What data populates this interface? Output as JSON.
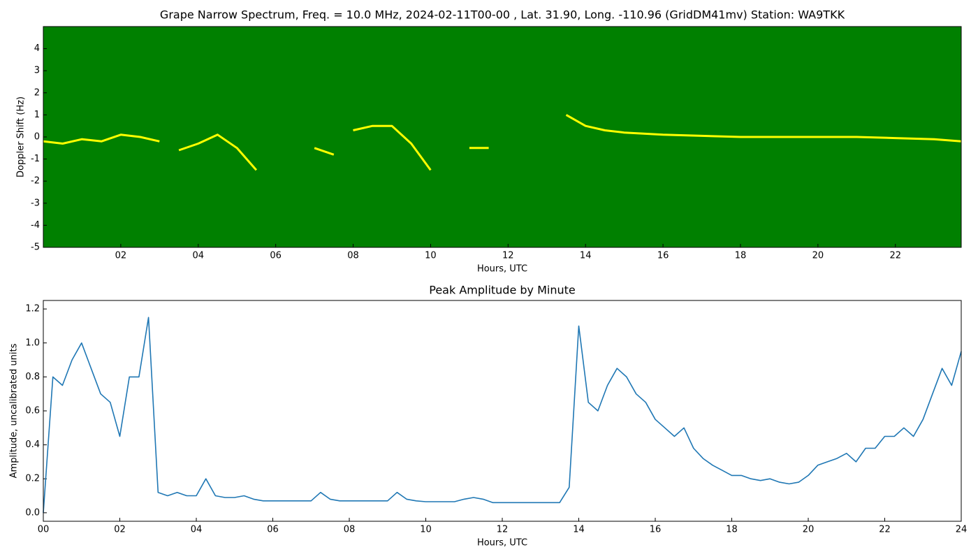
{
  "chart_data": [
    {
      "type": "line",
      "title": "Grape Narrow Spectrum, Freq. = 10.0 MHz, 2024-02-11T00-00 , Lat.  31.90, Long. -110.96 (GridDM41mv) Station: WA9TKK",
      "xlabel": "Hours, UTC",
      "ylabel": "Doppler Shift (Hz)",
      "background": "#008000",
      "xlim": [
        0,
        23.7
      ],
      "ylim": [
        -5,
        5
      ],
      "xticks": [
        {
          "value": 2,
          "label": "02"
        },
        {
          "value": 4,
          "label": "04"
        },
        {
          "value": 6,
          "label": "06"
        },
        {
          "value": 8,
          "label": "08"
        },
        10,
        12,
        14,
        16,
        18,
        20,
        22
      ],
      "yticks": [
        -5,
        -4,
        -3,
        -2,
        -1,
        0,
        1,
        2,
        3,
        4
      ],
      "x": [
        0,
        0.5,
        1,
        1.5,
        2,
        2.5,
        3,
        3.25,
        3.5,
        4,
        4.5,
        5,
        5.5,
        6,
        7,
        7.5,
        7.75,
        8,
        8.5,
        9,
        9.5,
        10,
        10.5,
        11,
        11.5,
        12,
        13.5,
        14,
        14.5,
        15,
        15.5,
        16,
        17,
        18,
        19,
        20,
        21,
        22,
        23,
        23.7
      ],
      "series": [
        {
          "color": "#ffff00",
          "values": [
            -0.2,
            -0.3,
            -0.1,
            -0.2,
            0.1,
            0,
            -0.2,
            null,
            -0.6,
            -0.3,
            0.1,
            -0.5,
            -1.5,
            null,
            -0.5,
            -0.8,
            null,
            0.3,
            0.5,
            0.5,
            -0.3,
            -1.5,
            null,
            -0.5,
            -0.5,
            null,
            1.0,
            0.5,
            0.3,
            0.2,
            0.15,
            0.1,
            0.05,
            0,
            0,
            0,
            0,
            -0.05,
            -0.1,
            -0.2
          ]
        }
      ]
    },
    {
      "type": "line",
      "title": "Peak Amplitude by Minute",
      "xlabel": "Hours, UTC",
      "ylabel": "Amplitude, uncalibrated units",
      "xlim": [
        0,
        24
      ],
      "ylim": [
        -0.05,
        1.25
      ],
      "xticks": [
        {
          "value": 0,
          "label": "00"
        },
        {
          "value": 2,
          "label": "02"
        },
        {
          "value": 4,
          "label": "04"
        },
        {
          "value": 6,
          "label": "06"
        },
        {
          "value": 8,
          "label": "08"
        },
        10,
        12,
        14,
        16,
        18,
        20,
        22,
        24
      ],
      "yticks": [
        {
          "value": 0,
          "label": "0.0"
        },
        0.2,
        0.4,
        0.6,
        0.8,
        {
          "value": 1,
          "label": "1.0"
        },
        1.2
      ],
      "x": [
        0,
        0.25,
        0.5,
        0.75,
        1,
        1.25,
        1.5,
        1.75,
        2,
        2.25,
        2.5,
        2.75,
        3,
        3.25,
        3.5,
        3.75,
        4,
        4.25,
        4.5,
        4.75,
        5,
        5.25,
        5.5,
        5.75,
        6,
        6.25,
        6.5,
        6.75,
        7,
        7.25,
        7.5,
        7.75,
        8,
        8.25,
        8.5,
        8.75,
        9,
        9.25,
        9.5,
        9.75,
        10,
        10.25,
        10.5,
        10.75,
        11,
        11.25,
        11.5,
        11.75,
        12,
        12.25,
        12.5,
        12.75,
        13,
        13.25,
        13.5,
        13.75,
        14,
        14.25,
        14.5,
        14.75,
        15,
        15.25,
        15.5,
        15.75,
        16,
        16.25,
        16.5,
        16.75,
        17,
        17.25,
        17.5,
        17.75,
        18,
        18.25,
        18.5,
        18.75,
        19,
        19.25,
        19.5,
        19.75,
        20,
        20.25,
        20.5,
        20.75,
        21,
        21.25,
        21.5,
        21.75,
        22,
        22.25,
        22.5,
        22.75,
        23,
        23.25,
        23.5,
        23.75,
        24
      ],
      "series": [
        {
          "color": "#1f77b4",
          "values": [
            0.0,
            0.8,
            0.75,
            0.9,
            1.0,
            0.85,
            0.7,
            0.65,
            0.45,
            0.8,
            0.8,
            1.15,
            0.12,
            0.1,
            0.12,
            0.1,
            0.1,
            0.2,
            0.1,
            0.09,
            0.09,
            0.1,
            0.08,
            0.07,
            0.07,
            0.07,
            0.07,
            0.07,
            0.07,
            0.12,
            0.08,
            0.07,
            0.07,
            0.07,
            0.07,
            0.07,
            0.07,
            0.12,
            0.08,
            0.07,
            0.065,
            0.065,
            0.065,
            0.065,
            0.08,
            0.09,
            0.08,
            0.06,
            0.06,
            0.06,
            0.06,
            0.06,
            0.06,
            0.06,
            0.06,
            0.15,
            1.1,
            0.65,
            0.6,
            0.75,
            0.85,
            0.8,
            0.7,
            0.65,
            0.55,
            0.5,
            0.45,
            0.5,
            0.38,
            0.32,
            0.28,
            0.25,
            0.22,
            0.22,
            0.2,
            0.19,
            0.2,
            0.18,
            0.17,
            0.18,
            0.22,
            0.28,
            0.3,
            0.32,
            0.35,
            0.3,
            0.38,
            0.38,
            0.45,
            0.45,
            0.5,
            0.45,
            0.55,
            0.7,
            0.85,
            0.75,
            0.95
          ]
        }
      ]
    }
  ]
}
